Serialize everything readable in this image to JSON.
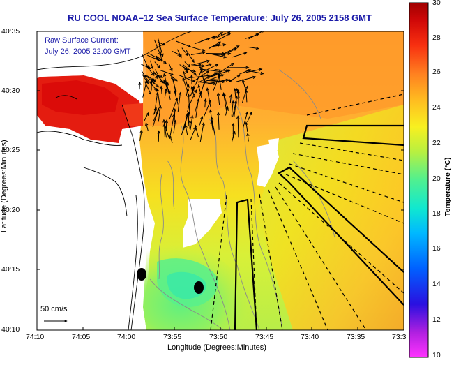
{
  "title": "RU COOL  NOAA–12  Sea Surface Temperature:  July 26, 2005 2158 GMT",
  "current_label": {
    "line1": "Raw Surface Current:",
    "line2": "July 26, 2005 22:00 GMT"
  },
  "scale_label": "50 cm/s",
  "axes": {
    "xlabel": "Longitude (Degrees:Minutes)",
    "ylabel": "Latitude (Degrees:Minutes)",
    "x_ticks": [
      "74:10",
      "74:05",
      "74:00",
      "73:55",
      "73:50",
      "73:45",
      "73:40",
      "73:35",
      "73:3"
    ],
    "y_ticks": [
      "40:35",
      "40:30",
      "40:25",
      "40:20",
      "40:15",
      "40:10"
    ]
  },
  "colorbar": {
    "label": "Temperature (°C)",
    "ticks": [
      "30",
      "28",
      "26",
      "24",
      "22",
      "20",
      "18",
      "16",
      "14",
      "12",
      "10"
    ],
    "range": [
      10,
      30
    ]
  },
  "colors": {
    "title": "#1a1aa8",
    "land": "#ffffff",
    "coast": "#000000",
    "isobath": "#808080"
  }
}
